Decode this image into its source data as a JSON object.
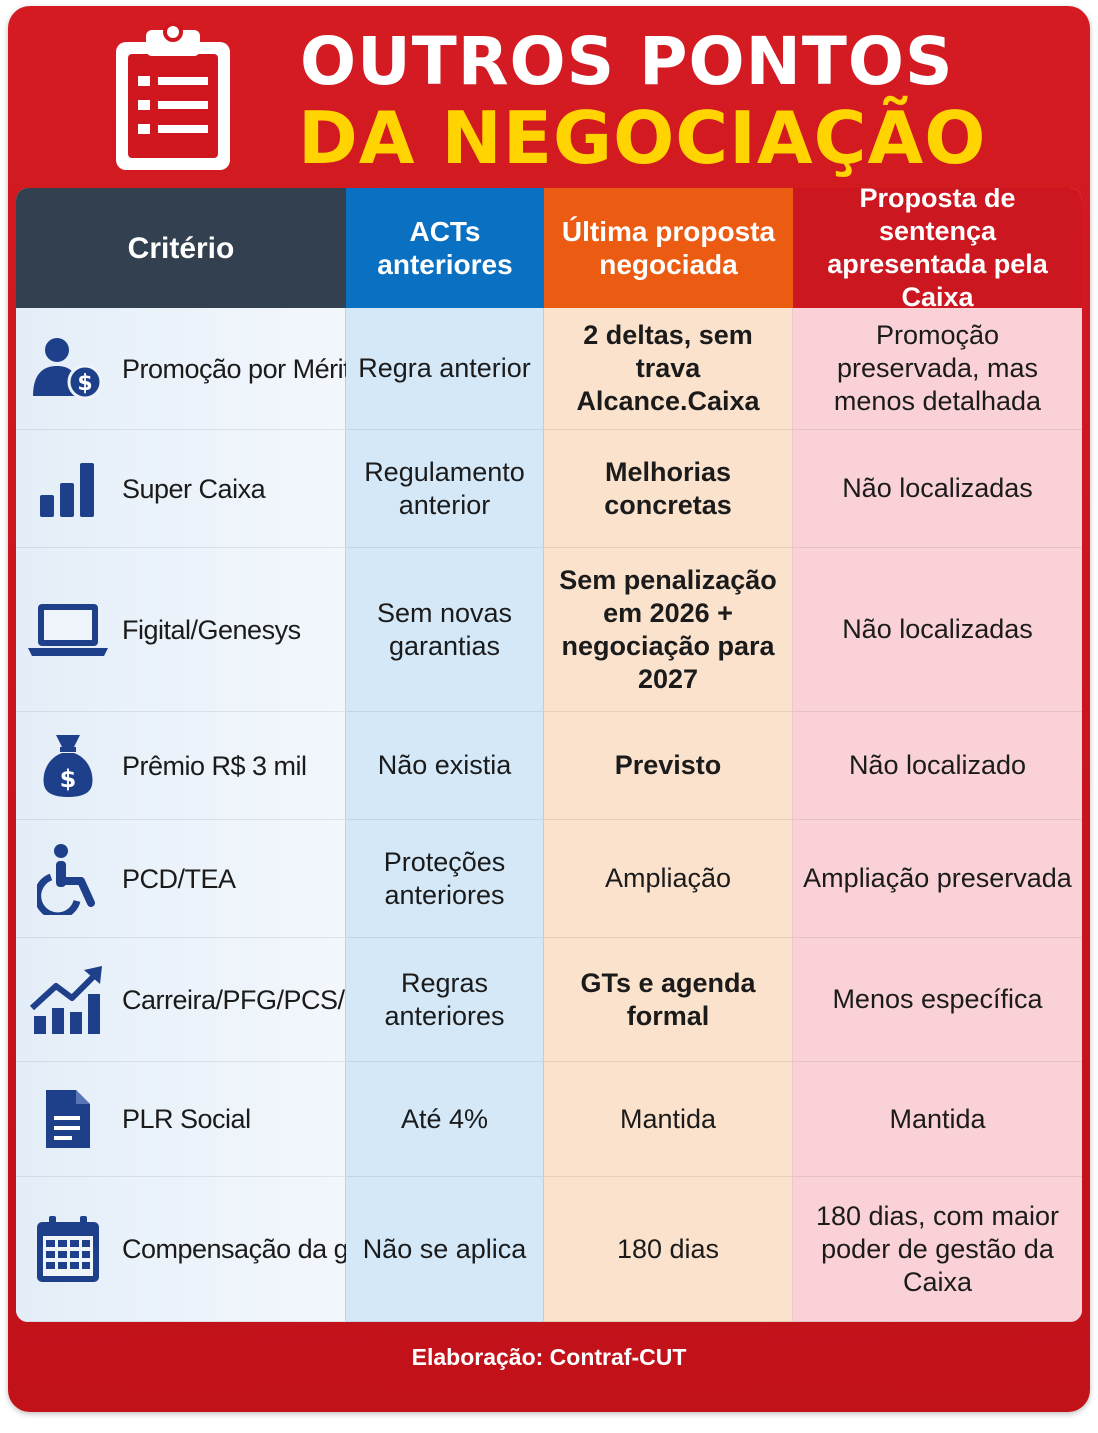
{
  "header": {
    "line1": "OUTROS PONTOS",
    "line2": "DA NEGOCIAÇÃO"
  },
  "columns": {
    "criterio": "Critério",
    "acts": "ACTs anteriores",
    "ultima": "Última proposta negociada",
    "sentenca": "Proposta de sentença apresentada pela Caixa"
  },
  "rows": [
    {
      "icon": "person-dollar-icon",
      "criterio": "Promoção por Mérito",
      "acts": "Regra anterior",
      "ultima": "2 deltas, sem trava Alcance.Caixa",
      "ultima_bold": true,
      "sentenca": "Promoção preservada, mas menos detalhada"
    },
    {
      "icon": "bar-chart-icon",
      "criterio": "Super Caixa",
      "acts": "Regulamento anterior",
      "ultima": "Melhorias concretas",
      "ultima_bold": true,
      "sentenca": "Não localizadas"
    },
    {
      "icon": "laptop-icon",
      "criterio": "Figital/Genesys",
      "acts": "Sem novas garantias",
      "ultima": "Sem penalização em 2026 + negociação para 2027",
      "ultima_bold": true,
      "sentenca": "Não localizadas"
    },
    {
      "icon": "money-bag-icon",
      "criterio": "Prêmio R$ 3 mil",
      "acts": "Não existia",
      "ultima": "Previsto",
      "ultima_bold": true,
      "sentenca": "Não localizado"
    },
    {
      "icon": "wheelchair-icon",
      "criterio": "PCD/TEA",
      "acts": "Proteções anteriores",
      "ultima": "Ampliação",
      "ultima_bold": false,
      "sentenca": "Ampliação preservada"
    },
    {
      "icon": "growth-chart-icon",
      "criterio": "Carreira/PFG/PCS/PSI",
      "acts": "Regras anteriores",
      "ultima": "GTs e agenda formal",
      "ultima_bold": true,
      "sentenca": "Menos específica"
    },
    {
      "icon": "document-icon",
      "criterio": "PLR Social",
      "acts": "Até 4%",
      "ultima": "Mantida",
      "ultima_bold": false,
      "sentenca": "Mantida"
    },
    {
      "icon": "calendar-icon",
      "criterio": "Compensação da greve",
      "acts": "Não se aplica",
      "ultima": "180 dias",
      "ultima_bold": false,
      "sentenca": "180 dias, com maior poder de gestão da Caixa"
    }
  ],
  "footer": "Elaboração: Contraf-CUT",
  "colors": {
    "red": "#cc1620",
    "yellow": "#ffd400",
    "navy_icon": "#1e3f8a",
    "header_dark": "#33404f",
    "header_blue": "#0a70c2",
    "header_orange": "#ec5b12"
  }
}
